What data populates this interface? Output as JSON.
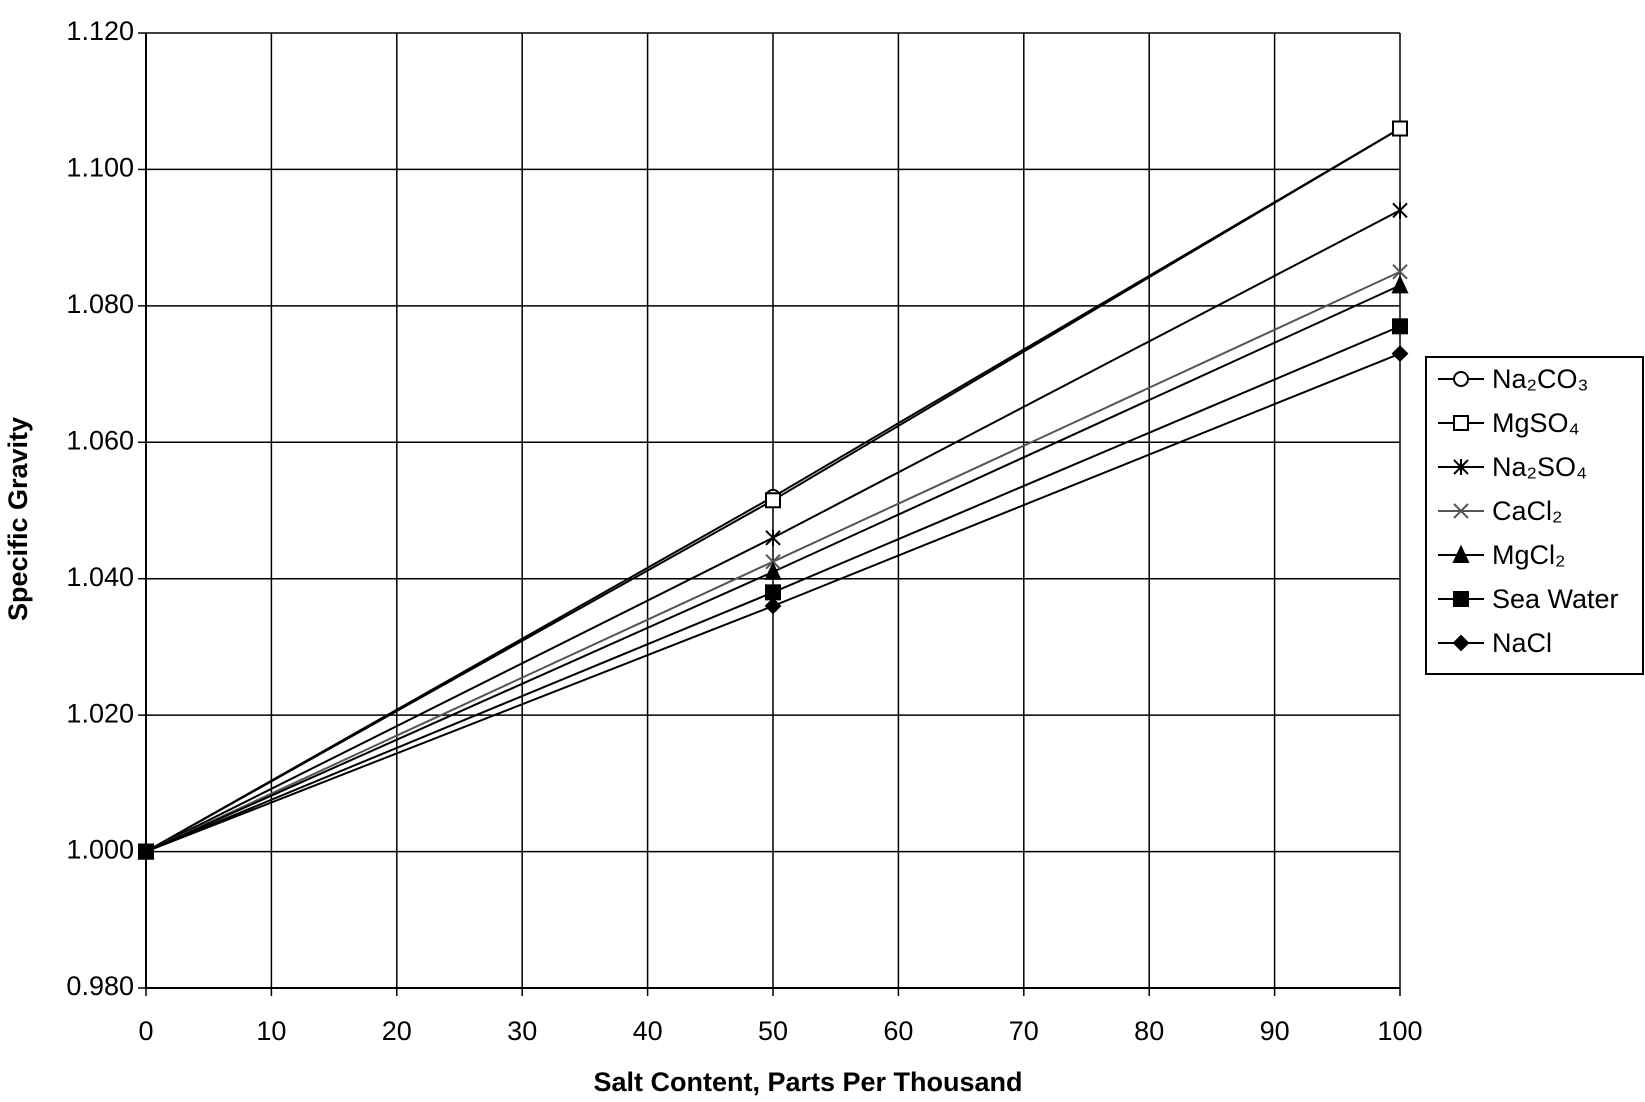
{
  "chart_data": {
    "type": "line",
    "x_label": "Salt Content, Parts Per Thousand",
    "y_label": "Specific Gravity",
    "x": [
      0,
      50,
      100
    ],
    "series": [
      {
        "name": "Na₂CO₃",
        "color": "#000000",
        "marker": "circle-open",
        "values": [
          1.0,
          1.052,
          1.106
        ]
      },
      {
        "name": "MgSO₄",
        "color": "#000000",
        "marker": "square-open",
        "values": [
          1.0,
          1.0515,
          1.106
        ]
      },
      {
        "name": "Na₂SO₄",
        "color": "#000000",
        "marker": "asterisk",
        "values": [
          1.0,
          1.046,
          1.094
        ]
      },
      {
        "name": "CaCl₂",
        "color": "#555555",
        "marker": "x",
        "values": [
          1.0,
          1.0425,
          1.085
        ]
      },
      {
        "name": "MgCl₂",
        "color": "#000000",
        "marker": "triangle",
        "values": [
          1.0,
          1.041,
          1.083
        ]
      },
      {
        "name": "Sea Water",
        "color": "#000000",
        "marker": "square",
        "values": [
          1.0,
          1.038,
          1.077
        ]
      },
      {
        "name": "NaCl",
        "color": "#000000",
        "marker": "diamond",
        "values": [
          1.0,
          1.036,
          1.073
        ]
      }
    ],
    "xlim": [
      0,
      100
    ],
    "xticks": [
      0,
      10,
      20,
      30,
      40,
      50,
      60,
      70,
      80,
      90,
      100
    ],
    "ylim": [
      0.98,
      1.12
    ],
    "yticks": [
      {
        "value": 0.98,
        "label": "0.980"
      },
      {
        "value": 1.0,
        "label": "1.000"
      },
      {
        "value": 1.02,
        "label": "1.020"
      },
      {
        "value": 1.04,
        "label": "1.040"
      },
      {
        "value": 1.06,
        "label": "1.060"
      },
      {
        "value": 1.08,
        "label": "1.080"
      },
      {
        "value": 1.1,
        "label": "1.100"
      },
      {
        "value": 1.12,
        "label": "1.120"
      }
    ],
    "grid": true,
    "legend": "right"
  }
}
